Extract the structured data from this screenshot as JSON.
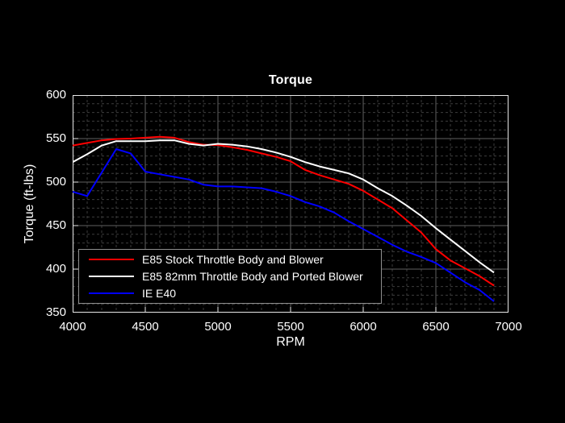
{
  "figure": {
    "background": "#000000",
    "axes_color": "#e8e8e8",
    "grid_major_color": "#5f5f5f",
    "grid_minor_color": "#3d3d3d",
    "legend_border_color": "#8f8f8f"
  },
  "chart_data": {
    "type": "line",
    "title": "Torque",
    "xlabel": "RPM",
    "ylabel": "Torque (ft-lbs)",
    "xlim": [
      4000,
      7000
    ],
    "ylim": [
      350,
      600
    ],
    "x_ticks": [
      4000,
      4500,
      5000,
      5500,
      6000,
      6500,
      7000
    ],
    "y_ticks": [
      350,
      400,
      450,
      500,
      550,
      600
    ],
    "grid": {
      "major": "solid",
      "minor": "dashed",
      "minor_x_step": 100,
      "minor_y_step": 10
    },
    "legend_position": "lower-left",
    "x": [
      4000,
      4100,
      4200,
      4300,
      4400,
      4500,
      4600,
      4700,
      4800,
      4900,
      5000,
      5100,
      5200,
      5300,
      5400,
      5500,
      5600,
      5700,
      5800,
      5900,
      6000,
      6100,
      6200,
      6300,
      6400,
      6500,
      6600,
      6700,
      6800,
      6900
    ],
    "series": [
      {
        "name": "E85 Stock Throttle Body and Blower",
        "color": "#ff0000",
        "values": [
          542,
          545,
          548,
          549.5,
          550,
          551,
          552,
          551,
          546,
          543,
          542.5,
          540,
          537,
          533,
          529,
          524,
          514,
          508,
          503,
          498,
          490,
          480,
          470,
          456,
          442,
          423,
          410,
          401,
          392,
          381
        ]
      },
      {
        "name": "E85 82mm Throttle Body and Ported Blower",
        "color": "#ffffff",
        "values": [
          523,
          532,
          542,
          547,
          547,
          547,
          548,
          548,
          544,
          542,
          544,
          543,
          541,
          538,
          534,
          529,
          523,
          518,
          514,
          510,
          503,
          493,
          484,
          473,
          461,
          447,
          434,
          421,
          408,
          396
        ]
      },
      {
        "name": "IE E40",
        "color": "#0000ff",
        "values": [
          489,
          484,
          511,
          538,
          533,
          512,
          509,
          506,
          503,
          497,
          495,
          495,
          494,
          493,
          489,
          484,
          477,
          472,
          465,
          455,
          446,
          437,
          428,
          420,
          414,
          407,
          396,
          385,
          376,
          363
        ]
      }
    ]
  }
}
